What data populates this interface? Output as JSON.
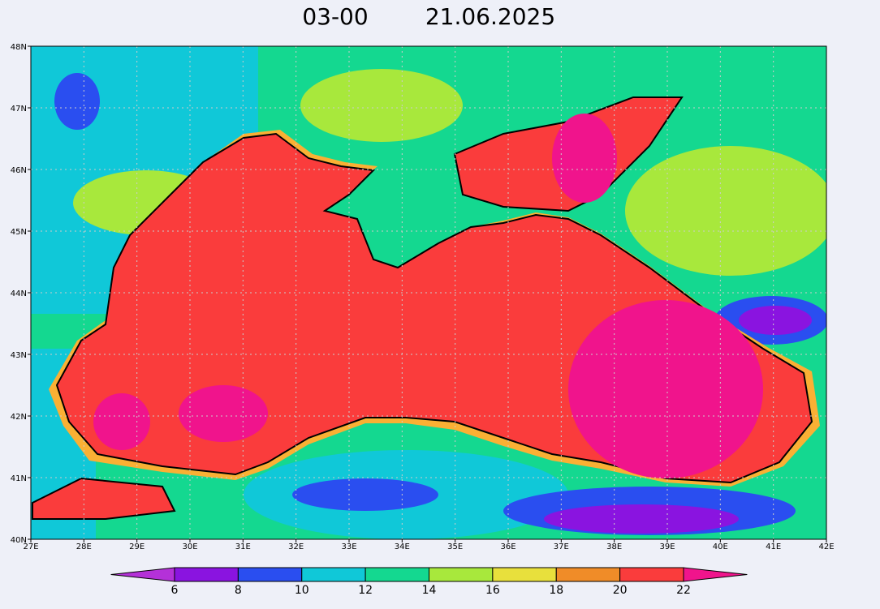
{
  "chart_data": {
    "type": "map",
    "title_time": "03-00",
    "title_date": "21.06.2025",
    "xlim": [
      27,
      42
    ],
    "ylim": [
      40,
      48
    ],
    "xticks": [
      {
        "value": 27,
        "label": "27E"
      },
      {
        "value": 28,
        "label": "28E"
      },
      {
        "value": 29,
        "label": "29E"
      },
      {
        "value": 30,
        "label": "30E"
      },
      {
        "value": 31,
        "label": "31E"
      },
      {
        "value": 32,
        "label": "32E"
      },
      {
        "value": 33,
        "label": "33E"
      },
      {
        "value": 34,
        "label": "34E"
      },
      {
        "value": 35,
        "label": "35E"
      },
      {
        "value": 36,
        "label": "36E"
      },
      {
        "value": 37,
        "label": "37E"
      },
      {
        "value": 38,
        "label": "38E"
      },
      {
        "value": 39,
        "label": "39E"
      },
      {
        "value": 40,
        "label": "40E"
      },
      {
        "value": 41,
        "label": "41E"
      },
      {
        "value": 42,
        "label": "42E"
      }
    ],
    "yticks": [
      {
        "value": 40,
        "label": "40N"
      },
      {
        "value": 41,
        "label": "41N"
      },
      {
        "value": 42,
        "label": "42N"
      },
      {
        "value": 43,
        "label": "43N"
      },
      {
        "value": 44,
        "label": "44N"
      },
      {
        "value": 45,
        "label": "45N"
      },
      {
        "value": 46,
        "label": "46N"
      },
      {
        "value": 47,
        "label": "47N"
      },
      {
        "value": 48,
        "label": "48N"
      }
    ],
    "grid": true,
    "colorbar": {
      "levels": [
        6,
        8,
        10,
        12,
        14,
        16,
        18,
        20,
        22
      ],
      "colors": [
        "#b431d8",
        "#8a14e0",
        "#2a4ef0",
        "#10c8d8",
        "#14d890",
        "#a8e83c",
        "#e8e03c",
        "#f08c28",
        "#fa3c3c",
        "#f0148c"
      ]
    }
  }
}
